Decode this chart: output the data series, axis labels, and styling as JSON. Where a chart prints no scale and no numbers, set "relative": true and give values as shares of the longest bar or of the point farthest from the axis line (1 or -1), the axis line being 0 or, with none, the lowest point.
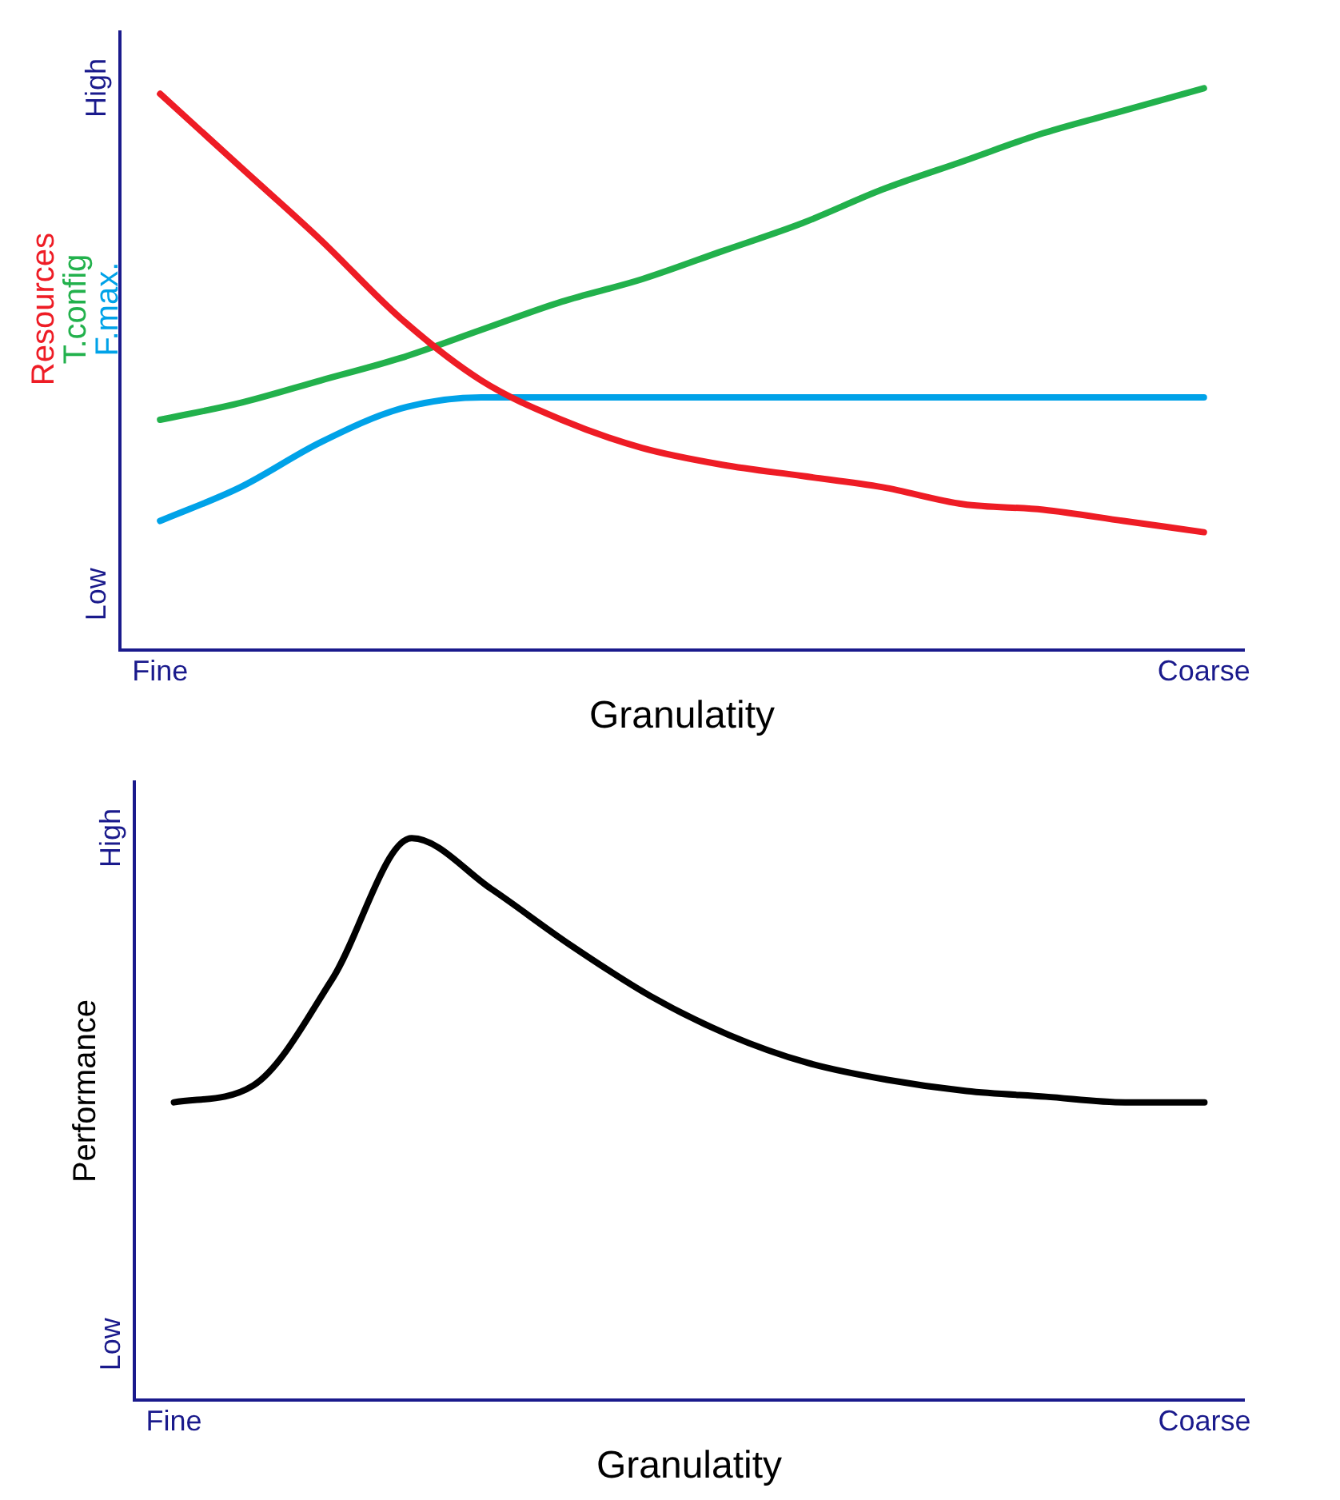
{
  "chart_data": [
    {
      "type": "line",
      "relative": true,
      "xlabel": "Granulatity",
      "legend": "left",
      "grid": false,
      "marker": "none",
      "annotations": [
        "High",
        "Low"
      ],
      "categories": [
        "Fine",
        null,
        null,
        null,
        null,
        null,
        null,
        null,
        null,
        null,
        null,
        null,
        null,
        "Coarse"
      ],
      "series": [
        {
          "name": "Resources",
          "color": "#ee1c25",
          "values": [
            0.99,
            0.86,
            0.73,
            0.59,
            0.48,
            0.41,
            0.36,
            0.33,
            0.31,
            0.29,
            0.26,
            0.25,
            0.23,
            0.21
          ]
        },
        {
          "name": "T.config",
          "color": "#22b14c",
          "values": [
            0.41,
            0.44,
            0.48,
            0.52,
            0.57,
            0.62,
            0.66,
            0.71,
            0.76,
            0.82,
            0.87,
            0.92,
            0.96,
            1.0
          ]
        },
        {
          "name": "F.max.",
          "color": "#00a2e8",
          "values": [
            0.23,
            0.29,
            0.37,
            0.43,
            0.45,
            0.45,
            0.45,
            0.45,
            0.45,
            0.45,
            0.45,
            0.45,
            0.45,
            0.45
          ]
        }
      ]
    },
    {
      "type": "line",
      "relative": true,
      "xlabel": "Granulatity",
      "ylabel": "Performance",
      "legend": false,
      "grid": false,
      "marker": "none",
      "annotations": [
        "High",
        "Low"
      ],
      "categories": [
        "Fine",
        null,
        null,
        null,
        null,
        null,
        null,
        null,
        null,
        null,
        null,
        null,
        null,
        "Coarse"
      ],
      "series": [
        {
          "color": "#000000",
          "values": [
            0.53,
            0.56,
            0.75,
            1.0,
            0.91,
            0.81,
            0.72,
            0.65,
            0.6,
            0.57,
            0.55,
            0.54,
            0.53,
            0.53
          ]
        }
      ]
    }
  ]
}
